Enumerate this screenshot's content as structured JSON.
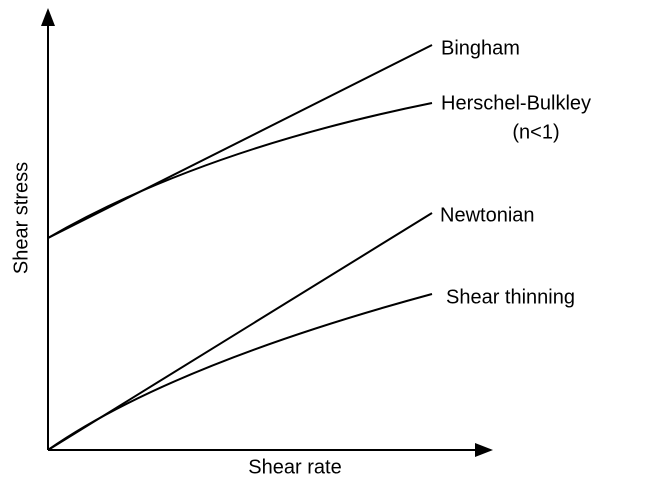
{
  "axes": {
    "y_label": "Shear stress",
    "x_label": "Shear rate"
  },
  "curves": [
    {
      "label": "Bingham"
    },
    {
      "label": "Herschel-Bulkley",
      "sublabel": "(n<1)"
    },
    {
      "label": "Newtonian"
    },
    {
      "label": "Shear thinning"
    }
  ]
}
